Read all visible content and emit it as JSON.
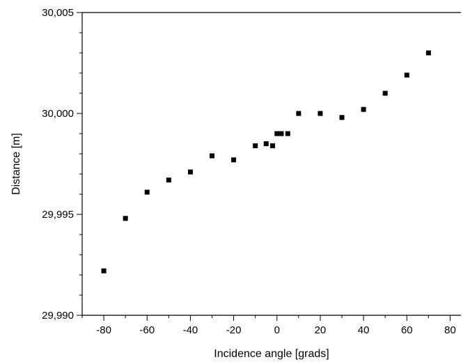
{
  "chart_data": {
    "type": "scatter",
    "title": "",
    "xlabel": "Incidence angle [grads]",
    "ylabel": "Distance [m]",
    "xlim": [
      -90,
      85
    ],
    "ylim": [
      29.99,
      30.005
    ],
    "x_ticks": [
      -80,
      -60,
      -40,
      -20,
      0,
      20,
      40,
      60,
      80
    ],
    "x_tick_labels": [
      "-80",
      "-60",
      "-40",
      "-20",
      "0",
      "20",
      "40",
      "60",
      "80"
    ],
    "y_ticks": [
      29.99,
      29.995,
      30.0,
      30.005
    ],
    "y_tick_labels": [
      "29,990",
      "29,995",
      "30,000",
      "30,005"
    ],
    "grid": false,
    "marker": "square",
    "marker_color": "#000000",
    "series": [
      {
        "points": [
          {
            "x": -80,
            "y": 29.9922
          },
          {
            "x": -70,
            "y": 29.9948
          },
          {
            "x": -60,
            "y": 29.9961
          },
          {
            "x": -50,
            "y": 29.9967
          },
          {
            "x": -40,
            "y": 29.9971
          },
          {
            "x": -30,
            "y": 29.9979
          },
          {
            "x": -20,
            "y": 29.9977
          },
          {
            "x": -10,
            "y": 29.9984
          },
          {
            "x": -5,
            "y": 29.9985
          },
          {
            "x": -2,
            "y": 29.9984
          },
          {
            "x": 0,
            "y": 29.999
          },
          {
            "x": 2,
            "y": 29.999
          },
          {
            "x": 5,
            "y": 29.999
          },
          {
            "x": 10,
            "y": 30.0
          },
          {
            "x": 20,
            "y": 30.0
          },
          {
            "x": 30,
            "y": 29.9998
          },
          {
            "x": 40,
            "y": 30.0002
          },
          {
            "x": 50,
            "y": 30.001
          },
          {
            "x": 60,
            "y": 30.0019
          },
          {
            "x": 70,
            "y": 30.003
          }
        ]
      }
    ]
  }
}
